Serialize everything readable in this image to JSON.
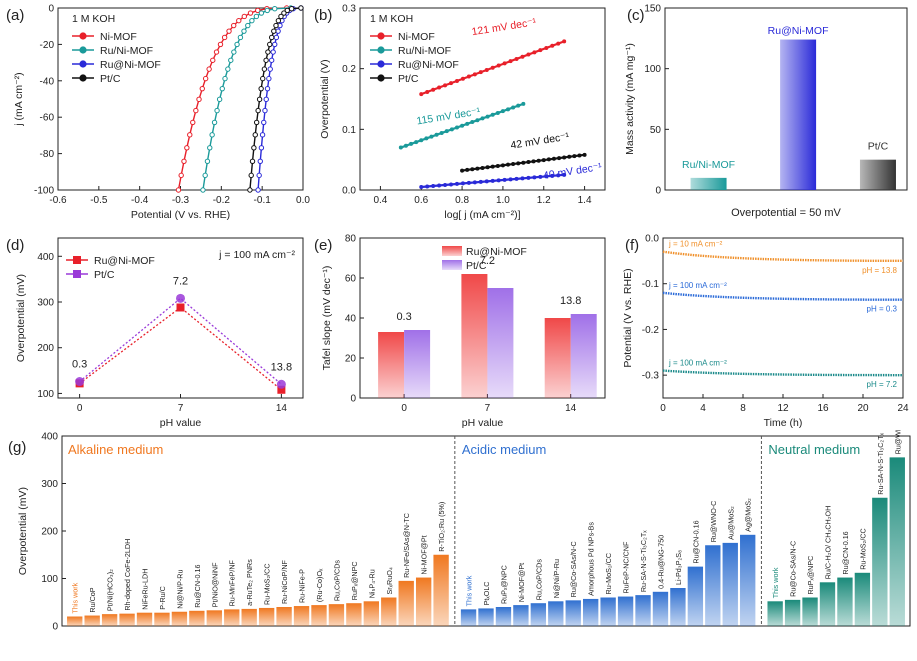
{
  "chart_data": [
    {
      "panel": "(a)",
      "type": "line",
      "annotation": "1 M KOH",
      "xlabel": "Potential (V vs. RHE)",
      "ylabel": "j (mA cm⁻²)",
      "xlim": [
        -0.6,
        0.0
      ],
      "ylim": [
        -100,
        0
      ],
      "xticks": [
        "-0.6",
        "-0.5",
        "-0.4",
        "-0.3",
        "-0.2",
        "-0.1",
        "0.0"
      ],
      "yticks": [
        "-100",
        "-80",
        "-60",
        "-40",
        "-20",
        "0"
      ],
      "legend": "top-left",
      "series": [
        {
          "name": "Ni-MOF",
          "color": "#e8202a",
          "onset": -0.04,
          "end": -0.305
        },
        {
          "name": "Ru/Ni-MOF",
          "color": "#1a9a9a",
          "onset": -0.03,
          "end": -0.245
        },
        {
          "name": "Ru@Ni-MOF",
          "color": "#2a2ad8",
          "onset": -0.005,
          "end": -0.11
        },
        {
          "name": "Pt/C",
          "color": "#111111",
          "onset": -0.005,
          "end": -0.13
        }
      ]
    },
    {
      "panel": "(b)",
      "type": "line",
      "annotation": "1 M KOH",
      "xlabel": "log[ j (mA cm⁻²)]",
      "ylabel": "Overpotential (V)",
      "xlim": [
        0.3,
        1.5
      ],
      "ylim": [
        0,
        0.3
      ],
      "xticks": [
        "0.4",
        "0.6",
        "0.8",
        "1.0",
        "1.2",
        "1.4"
      ],
      "yticks": [
        "0.0",
        "0.1",
        "0.2",
        "0.3"
      ],
      "legend": "top-left",
      "series": [
        {
          "name": "Ni-MOF",
          "color": "#e8202a",
          "x": [
            0.6,
            1.3
          ],
          "y": [
            0.158,
            0.245
          ],
          "label": "121 mV dec⁻¹"
        },
        {
          "name": "Ru/Ni-MOF",
          "color": "#1a9a9a",
          "x": [
            0.5,
            1.1
          ],
          "y": [
            0.07,
            0.142
          ],
          "label": "115 mV dec⁻¹"
        },
        {
          "name": "Ru@Ni-MOF",
          "color": "#2a2ad8",
          "x": [
            0.6,
            1.3
          ],
          "y": [
            0.005,
            0.025
          ],
          "label": "40 mV dec⁻¹"
        },
        {
          "name": "Pt/C",
          "color": "#111111",
          "x": [
            0.8,
            1.4
          ],
          "y": [
            0.032,
            0.058
          ],
          "label": "42 mV dec⁻¹"
        }
      ]
    },
    {
      "panel": "(c)",
      "type": "bar",
      "ylabel": "Mass activity (mA mg⁻¹)",
      "xlabel": "Overpotential = 50 mV",
      "ylim": [
        0,
        150
      ],
      "yticks": [
        "0",
        "50",
        "100",
        "150"
      ],
      "categories": [
        "Ru/Ni-MOF",
        "Ru@Ni-MOF",
        "Pt/C"
      ],
      "values": [
        10,
        124,
        25
      ],
      "colors": [
        "#1a9a9a",
        "#2a2ad8",
        "#333333"
      ]
    },
    {
      "panel": "(d)",
      "type": "line",
      "annotation": "j = 100 mA cm⁻²",
      "xlabel": "pH value",
      "ylabel": "Overpotential (mV)",
      "xlim": [
        -1.5,
        15.5
      ],
      "ylim": [
        90,
        440
      ],
      "xticks": [
        "0",
        "7",
        "14"
      ],
      "yticks": [
        "100",
        "200",
        "300",
        "400"
      ],
      "legend": "top-left",
      "x": [
        0,
        7,
        14
      ],
      "point_labels": [
        "0.3",
        "7.2",
        "13.8"
      ],
      "series": [
        {
          "name": "Ru@Ni-MOF",
          "color": "#e8202a",
          "values": [
            122,
            288,
            108
          ]
        },
        {
          "name": "Pt/C",
          "color": "#9a3ad8",
          "values": [
            126,
            308,
            120
          ]
        }
      ]
    },
    {
      "panel": "(e)",
      "type": "bar",
      "xlabel": "pH value",
      "ylabel": "Tafel slope (mV dec⁻¹)",
      "ylim": [
        0,
        80
      ],
      "yticks": [
        "0",
        "20",
        "40",
        "60",
        "80"
      ],
      "categories": [
        "0",
        "7",
        "14"
      ],
      "point_labels": [
        "0.3",
        "7.2",
        "13.8"
      ],
      "legend": "top-center",
      "series": [
        {
          "name": "Ru@Ni-MOF",
          "color": "#f04848",
          "values": [
            33,
            62,
            40
          ]
        },
        {
          "name": "Pt/C",
          "color": "#a070e8",
          "values": [
            34,
            55,
            42
          ]
        }
      ]
    },
    {
      "panel": "(f)",
      "type": "line",
      "xlabel": "Time (h)",
      "ylabel": "Potential (V vs. RHE)",
      "xlim": [
        0,
        24
      ],
      "ylim": [
        -0.35,
        0.0
      ],
      "xticks": [
        "0",
        "4",
        "8",
        "12",
        "16",
        "20",
        "24"
      ],
      "yticks": [
        "0.0",
        "-0.1",
        "-0.2",
        "-0.3"
      ],
      "series": [
        {
          "name": "pH = 13.8",
          "color": "#f0902a",
          "label_left": "j = 10 mA cm⁻²",
          "values": [
            -0.03,
            -0.05
          ]
        },
        {
          "name": "pH = 0.3",
          "color": "#2a6ad8",
          "label_left": "j = 100 mA cm⁻²",
          "values": [
            -0.12,
            -0.135
          ]
        },
        {
          "name": "pH = 7.2",
          "color": "#1a8a8a",
          "label_left": "j = 100 mA cm⁻²",
          "values": [
            -0.29,
            -0.3
          ]
        }
      ]
    },
    {
      "panel": "(g)",
      "type": "bar",
      "ylabel": "Overpotential (mV)",
      "ylim": [
        0,
        400
      ],
      "yticks": [
        "0",
        "100",
        "200",
        "300",
        "400"
      ],
      "groups": [
        {
          "name": "Alkaline medium",
          "color": "#f07820",
          "categories": [
            "This work",
            "Ru/CoP",
            "Pt/Ni(HCO₃)₂",
            "Rh-doped CoFe-2LDH",
            "NiFeRu-LDH",
            "P-Ru/C",
            "Ni@Ni/P-Ru",
            "Ru@CN-0.16",
            "Pt/NiO@NiNF",
            "Ru-MnFeP/NF",
            "a-RuTe₂ PNRs",
            "Ru-MoS₂/CC",
            "Ru-NiCoP/NF",
            "Ru-NiFe-P",
            "(Ru-Co)Oₓ",
            "Ru,CoP/CDs",
            "RuPₓ@NPC",
            "Ni₅P₄-Ru",
            "SrₓRuO₄",
            "Ru-NFe/SAs@N-TC",
            "Ni-MOF@Pt",
            "R-TiO₂:Ru (5%)"
          ],
          "values": [
            20,
            22,
            25,
            26,
            28,
            28,
            30,
            32,
            33,
            35,
            36,
            38,
            40,
            42,
            44,
            46,
            48,
            52,
            60,
            95,
            102,
            150
          ]
        },
        {
          "name": "Acidic medium",
          "color": "#3070d0",
          "categories": [
            "This work",
            "PtₓOLC",
            "RuPₓ@NPC",
            "Ni-MOF@Pt",
            "Ru,CoP/CDs",
            "Ni@Ni/P-Ru",
            "Ru@Co-SAs/N-C",
            "Amorphous Pd NPs-Bs",
            "Ru-MoS₂/CC",
            "RuFeP-NC/CNF",
            "Ru-SA-N-S-Ti₃C₂Tₓ",
            "0.4-Ru@NG-750",
            "Li-Pd₃P₂S₈",
            "Ru@CN-0.16",
            "Ru@WNO-C",
            "Au@MoS₂",
            "Ag@MoS₂"
          ],
          "values": [
            35,
            37,
            40,
            44,
            48,
            52,
            54,
            57,
            60,
            62,
            65,
            72,
            80,
            125,
            170,
            175,
            192
          ]
        },
        {
          "name": "Neutral medium",
          "color": "#1a8a7a",
          "categories": [
            "This work",
            "Ru@Co-SAs/N-C",
            "RuPₓ@NPC",
            "Ru/C-H₂O/ CH₃CH₂OH",
            "Ru@CN-0.16",
            "Ru-MoS₂/CC",
            "Ru-SA-N-S-Ti₃C₂Tₓ",
            "Ru@WNO-C"
          ],
          "values": [
            52,
            55,
            60,
            92,
            102,
            112,
            270,
            355
          ]
        }
      ]
    }
  ]
}
